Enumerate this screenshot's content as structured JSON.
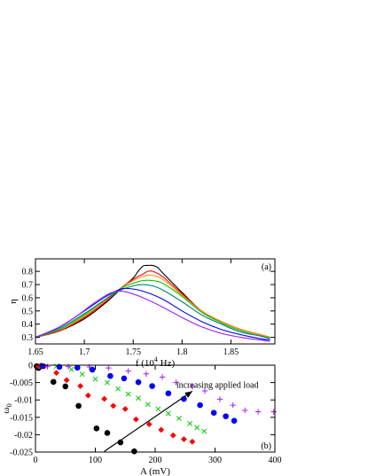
{
  "chart_data": [
    {
      "panel_label": "(a)",
      "type": "line",
      "xlabel_text": "f (10",
      "xlabel_sup": "4",
      "xlabel_tail": " Hz)",
      "ylabel": "η",
      "xlim": [
        1.65,
        1.895
      ],
      "ylim": [
        0.25,
        0.895
      ],
      "xticks": [
        "1.65",
        "1.7",
        "1.75",
        "1.8",
        "1.85"
      ],
      "xtick_values": [
        1.65,
        1.7,
        1.75,
        1.8,
        1.85
      ],
      "yticks": [
        "0.3",
        "0.4",
        "0.5",
        "0.6",
        "0.7",
        "0.8"
      ],
      "ytick_values": [
        0.3,
        0.4,
        0.5,
        0.6,
        0.7,
        0.8
      ],
      "series": [
        {
          "color": "#000000",
          "x": [
            1.65,
            1.675,
            1.7,
            1.72,
            1.735,
            1.75,
            1.755,
            1.76,
            1.765,
            1.77,
            1.775,
            1.78,
            1.8,
            1.82,
            1.84,
            1.86,
            1.88,
            1.89
          ],
          "y": [
            0.3,
            0.35,
            0.44,
            0.55,
            0.65,
            0.75,
            0.8,
            0.84,
            0.845,
            0.845,
            0.83,
            0.79,
            0.64,
            0.5,
            0.42,
            0.36,
            0.32,
            0.3
          ]
        },
        {
          "color": "#ff0000",
          "x": [
            1.65,
            1.675,
            1.7,
            1.72,
            1.735,
            1.75,
            1.76,
            1.765,
            1.77,
            1.78,
            1.8,
            1.82,
            1.84,
            1.86,
            1.88,
            1.89
          ],
          "y": [
            0.3,
            0.35,
            0.45,
            0.56,
            0.66,
            0.74,
            0.78,
            0.8,
            0.8,
            0.76,
            0.63,
            0.5,
            0.42,
            0.36,
            0.32,
            0.3
          ]
        },
        {
          "color": "#ff8c00",
          "x": [
            1.65,
            1.675,
            1.7,
            1.72,
            1.735,
            1.75,
            1.76,
            1.765,
            1.77,
            1.78,
            1.8,
            1.82,
            1.84,
            1.86,
            1.88,
            1.89
          ],
          "y": [
            0.3,
            0.36,
            0.46,
            0.57,
            0.66,
            0.73,
            0.76,
            0.77,
            0.77,
            0.74,
            0.62,
            0.5,
            0.42,
            0.36,
            0.32,
            0.3
          ]
        },
        {
          "color": "#00cc00",
          "x": [
            1.65,
            1.675,
            1.7,
            1.72,
            1.735,
            1.75,
            1.76,
            1.77,
            1.78,
            1.8,
            1.82,
            1.84,
            1.86,
            1.88,
            1.89
          ],
          "y": [
            0.3,
            0.36,
            0.47,
            0.58,
            0.66,
            0.71,
            0.73,
            0.73,
            0.71,
            0.61,
            0.49,
            0.41,
            0.35,
            0.31,
            0.295
          ]
        },
        {
          "color": "#008080",
          "x": [
            1.65,
            1.675,
            1.7,
            1.72,
            1.735,
            1.75,
            1.76,
            1.77,
            1.78,
            1.8,
            1.82,
            1.84,
            1.86,
            1.88,
            1.89
          ],
          "y": [
            0.3,
            0.37,
            0.48,
            0.58,
            0.65,
            0.69,
            0.7,
            0.69,
            0.66,
            0.57,
            0.47,
            0.4,
            0.34,
            0.31,
            0.29
          ]
        },
        {
          "color": "#0000ff",
          "x": [
            1.65,
            1.675,
            1.7,
            1.72,
            1.735,
            1.745,
            1.76,
            1.78,
            1.8,
            1.82,
            1.84,
            1.86,
            1.88,
            1.89
          ],
          "y": [
            0.3,
            0.38,
            0.5,
            0.6,
            0.66,
            0.67,
            0.65,
            0.59,
            0.5,
            0.42,
            0.36,
            0.32,
            0.29,
            0.28
          ]
        },
        {
          "color": "#a020f0",
          "x": [
            1.65,
            1.67,
            1.69,
            1.71,
            1.725,
            1.735,
            1.745,
            1.76,
            1.78,
            1.8,
            1.82,
            1.84,
            1.86,
            1.88,
            1.89
          ],
          "y": [
            0.3,
            0.36,
            0.45,
            0.56,
            0.63,
            0.65,
            0.64,
            0.6,
            0.53,
            0.45,
            0.38,
            0.33,
            0.3,
            0.28,
            0.27
          ]
        }
      ]
    },
    {
      "panel_label": "(b)",
      "type": "scatter",
      "xlabel": "A (mV)",
      "ylabel": "ω",
      "ylabel_sub": "0",
      "xlim": [
        0,
        400
      ],
      "ylim": [
        -0.025,
        0
      ],
      "xticks": [
        "0",
        "100",
        "200",
        "300",
        "400"
      ],
      "xtick_values": [
        0,
        100,
        200,
        300,
        400
      ],
      "yticks": [
        "0",
        "-0.005",
        "-0.01",
        "-0.015",
        "-0.02",
        "-0.025"
      ],
      "ytick_values": [
        0,
        -0.005,
        -0.01,
        -0.015,
        -0.02,
        -0.025
      ],
      "annotation": "increasing applied load",
      "arrow": {
        "from": [
          115,
          -0.0248
        ],
        "to": [
          262,
          -0.0075
        ]
      },
      "series": [
        {
          "color": "#000000",
          "marker": "circle",
          "points": [
            [
              2,
              -0.0003
            ],
            [
              5,
              -0.0008
            ],
            [
              10,
              -0.0002
            ],
            [
              30,
              -0.0048
            ],
            [
              50,
              -0.0061
            ],
            [
              72,
              -0.0117
            ],
            [
              102,
              -0.0182
            ],
            [
              120,
              -0.0195
            ],
            [
              142,
              -0.0222
            ],
            [
              165,
              -0.0248
            ]
          ]
        },
        {
          "color": "#ff0000",
          "marker": "diamond",
          "points": [
            [
              5,
              -0.0003
            ],
            [
              15,
              -0.0003
            ],
            [
              35,
              -0.0022
            ],
            [
              52,
              -0.0043
            ],
            [
              75,
              -0.006
            ],
            [
              88,
              -0.0087
            ],
            [
              115,
              -0.0097
            ],
            [
              130,
              -0.0117
            ],
            [
              150,
              -0.0126
            ],
            [
              168,
              -0.0156
            ],
            [
              190,
              -0.017
            ],
            [
              210,
              -0.0186
            ],
            [
              230,
              -0.0202
            ],
            [
              248,
              -0.0213
            ],
            [
              262,
              -0.022
            ]
          ]
        },
        {
          "color": "#00cc00",
          "marker": "x",
          "points": [
            [
              10,
              -0.0003
            ],
            [
              35,
              -0.0003
            ],
            [
              60,
              -0.0012
            ],
            [
              78,
              -0.0026
            ],
            [
              100,
              -0.004
            ],
            [
              120,
              -0.005
            ],
            [
              138,
              -0.0068
            ],
            [
              155,
              -0.0083
            ],
            [
              172,
              -0.0095
            ],
            [
              188,
              -0.0113
            ],
            [
              205,
              -0.0126
            ],
            [
              222,
              -0.0139
            ],
            [
              240,
              -0.0153
            ],
            [
              258,
              -0.0168
            ],
            [
              270,
              -0.018
            ],
            [
              282,
              -0.019
            ]
          ]
        },
        {
          "color": "#0000ff",
          "marker": "circle",
          "points": [
            [
              12,
              -0.0003
            ],
            [
              40,
              -0.0005
            ],
            [
              70,
              -0.0007
            ],
            [
              95,
              -0.0013
            ],
            [
              125,
              -0.0031
            ],
            [
              148,
              -0.0038
            ],
            [
              172,
              -0.0049
            ],
            [
              195,
              -0.006
            ],
            [
              222,
              -0.0081
            ],
            [
              248,
              -0.0097
            ],
            [
              275,
              -0.0115
            ],
            [
              298,
              -0.0137
            ],
            [
              318,
              -0.0147
            ],
            [
              332,
              -0.016
            ]
          ]
        },
        {
          "color": "#a020f0",
          "marker": "plus",
          "points": [
            [
              20,
              -0.0004
            ],
            [
              55,
              -0.0004
            ],
            [
              90,
              -0.0005
            ],
            [
              122,
              -0.0008
            ],
            [
              155,
              -0.0017
            ],
            [
              185,
              -0.0025
            ],
            [
              212,
              -0.0034
            ],
            [
              235,
              -0.005
            ],
            [
              262,
              -0.0062
            ],
            [
              283,
              -0.0074
            ],
            [
              308,
              -0.0098
            ],
            [
              330,
              -0.0115
            ],
            [
              350,
              -0.013
            ],
            [
              372,
              -0.0134
            ],
            [
              398,
              -0.0134
            ]
          ]
        }
      ]
    }
  ]
}
